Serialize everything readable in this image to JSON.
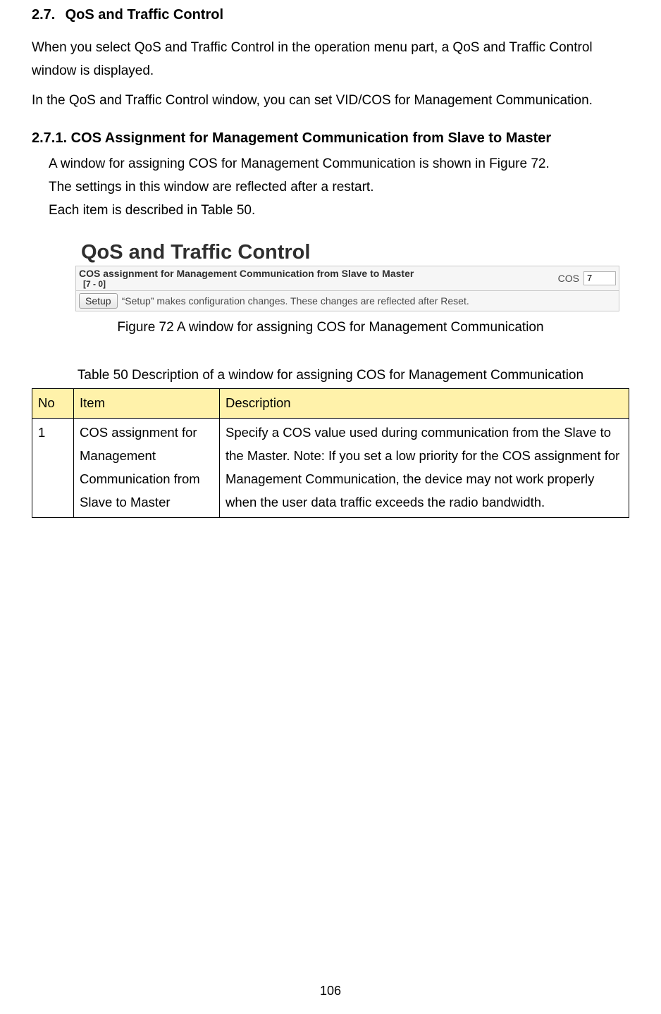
{
  "colors": {
    "table_header_bg": "#fff2aa",
    "table_border": "#000000",
    "scr_row_bg": "#f6f6f6",
    "scr_border": "#c9c9c9"
  },
  "heading_main": {
    "number": "2.7.",
    "title": "QoS and Traffic Control"
  },
  "intro_p1": "When you select QoS and Traffic Control in the operation menu part, a QoS and Traffic Control window is displayed.",
  "intro_p2": "In the QoS and Traffic Control window, you can set VID/COS for Management Communication.",
  "heading_sub": "2.7.1. COS Assignment for Management Communication from Slave to Master",
  "sub_p1": "A window for assigning COS for Management Communication is shown in Figure 72.",
  "sub_p2": "The settings in this window are reflected after a restart.",
  "sub_p3": "Each item is described in Table 50.",
  "screenshot": {
    "title": "QoS and Traffic Control",
    "row1_label": "COS assignment for Management Communication from Slave to Master",
    "row1_range": "[7 - 0]",
    "cos_label": "COS",
    "cos_value": "7",
    "row2_button": "Setup",
    "row2_note": "“Setup” makes configuration changes. These changes are reflected after Reset."
  },
  "figure_caption": "Figure 72 A window for assigning COS for Management Communication",
  "table_caption": "Table 50 Description of a window for assigning COS for Management Communication",
  "table": {
    "headers": {
      "no": "No",
      "item": "Item",
      "desc": "Description"
    },
    "rows": [
      {
        "no": "1",
        "item": "COS assignment for Management Communication from Slave to Master",
        "desc": "Specify a COS value used during communication from the Slave to the Master.\nNote: If you set a low priority for the COS assignment for Management Communication, the device may not work properly when the user data traffic exceeds the radio bandwidth."
      }
    ]
  },
  "page_number": "106"
}
